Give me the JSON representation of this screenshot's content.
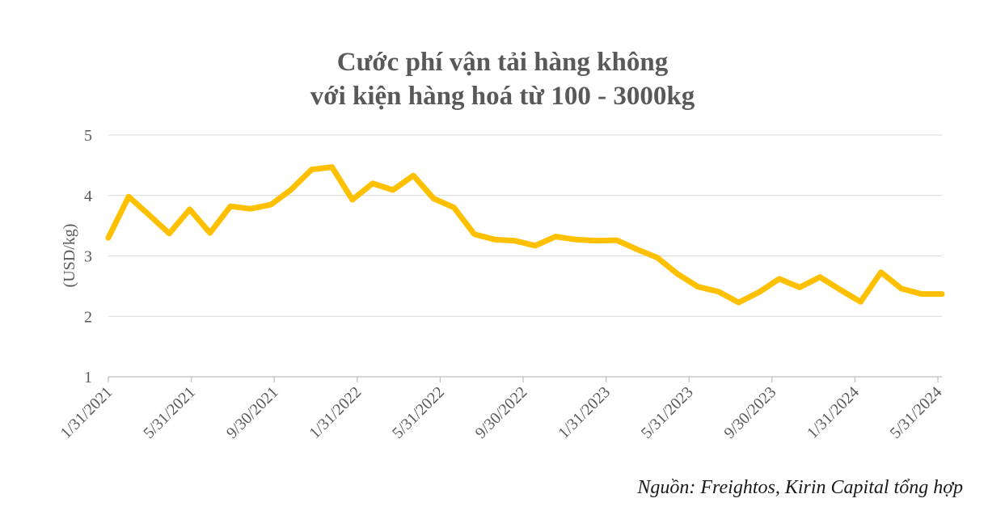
{
  "chart_data": {
    "type": "line",
    "title_line1": "Cước phí vận tải hàng không",
    "title_line2": "với kiện hàng hoá từ 100 - 3000kg",
    "ylabel": "(USD/kg)",
    "xlabel": "",
    "ylim": [
      1,
      5
    ],
    "yticks": [
      "1",
      "2",
      "3",
      "4",
      "5"
    ],
    "xticks": [
      "1/31/2021",
      "5/31/2021",
      "9/30/2021",
      "1/31/2022",
      "5/31/2022",
      "9/30/2022",
      "1/31/2023",
      "5/31/2023",
      "9/30/2023",
      "1/31/2024",
      "5/31/2024"
    ],
    "grid": true,
    "series": [
      {
        "name": "Cước phí",
        "color": "#FFC000",
        "values": [
          3.3,
          3.98,
          3.68,
          3.37,
          3.77,
          3.38,
          3.82,
          3.78,
          3.85,
          4.1,
          4.43,
          4.47,
          3.93,
          4.2,
          4.09,
          4.33,
          3.95,
          3.8,
          3.36,
          3.27,
          3.25,
          3.17,
          3.32,
          3.27,
          3.25,
          3.26,
          3.11,
          2.97,
          2.7,
          2.49,
          2.41,
          2.23,
          2.4,
          2.62,
          2.48,
          2.65,
          2.44,
          2.24,
          2.73,
          2.46,
          2.37,
          2.37
        ]
      }
    ],
    "source": "Nguồn: Freightos, Kirin Capital tổng hợp"
  }
}
